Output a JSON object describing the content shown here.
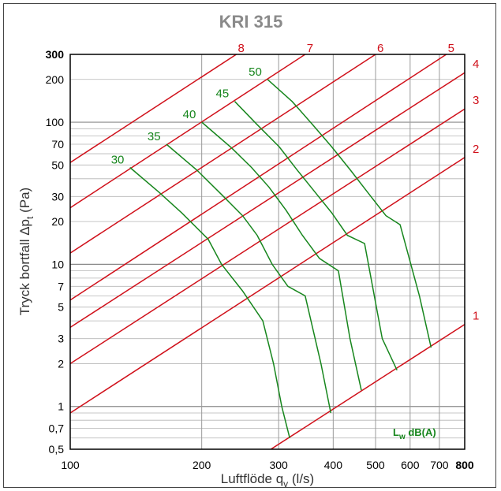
{
  "chart_data": {
    "type": "line",
    "title": "KRI 315",
    "xlabel": "Luftflöde q",
    "xlabel_sub": "v",
    "xlabel_unit": " (l/s)",
    "ylabel": "Tryck bortfall Δp",
    "ylabel_sub": "t",
    "ylabel_unit": " (Pa)",
    "x_scale": "log",
    "y_scale": "log",
    "xlim": [
      100,
      800
    ],
    "ylim": [
      0.5,
      300
    ],
    "grid": true,
    "x_ticks": [
      {
        "value": 100,
        "label": "100",
        "bold": false
      },
      {
        "value": 200,
        "label": "200",
        "bold": false
      },
      {
        "value": 300,
        "label": "300",
        "bold": false
      },
      {
        "value": 400,
        "label": "400",
        "bold": false
      },
      {
        "value": 500,
        "label": "500",
        "bold": false
      },
      {
        "value": 600,
        "label": "600",
        "bold": false
      },
      {
        "value": 700,
        "label": "700",
        "bold": false
      },
      {
        "value": 800,
        "label": "800",
        "bold": true
      }
    ],
    "y_ticks": [
      {
        "value": 0.5,
        "label": "0,5",
        "bold": false
      },
      {
        "value": 0.7,
        "label": "0,7",
        "bold": false
      },
      {
        "value": 1,
        "label": "1",
        "bold": false
      },
      {
        "value": 2,
        "label": "2",
        "bold": false
      },
      {
        "value": 3,
        "label": "3",
        "bold": false
      },
      {
        "value": 5,
        "label": "5",
        "bold": false
      },
      {
        "value": 7,
        "label": "7",
        "bold": false
      },
      {
        "value": 10,
        "label": "10",
        "bold": false
      },
      {
        "value": 20,
        "label": "20",
        "bold": false
      },
      {
        "value": 30,
        "label": "30",
        "bold": false
      },
      {
        "value": 50,
        "label": "50",
        "bold": false
      },
      {
        "value": 70,
        "label": "70",
        "bold": false
      },
      {
        "value": 100,
        "label": "100",
        "bold": false
      },
      {
        "value": 200,
        "label": "200",
        "bold": false
      },
      {
        "value": 300,
        "label": "300",
        "bold": true
      }
    ],
    "legend_label": "L",
    "legend_label_sub": "w",
    "legend_label_unit": " dB(A)",
    "legend_placement": "bottom-right",
    "colors": {
      "position_lines": "#d0101a",
      "sound_lines": "#17861d",
      "grid": "#9a9a9a"
    },
    "position_lines": [
      {
        "name": "1",
        "points": [
          [
            288,
            0.5
          ],
          [
            800,
            3.78
          ]
        ]
      },
      {
        "name": "2",
        "points": [
          [
            100,
            0.9
          ],
          [
            800,
            56.5
          ]
        ]
      },
      {
        "name": "3",
        "points": [
          [
            100,
            2.0
          ],
          [
            800,
            124
          ]
        ]
      },
      {
        "name": "4",
        "points": [
          [
            100,
            3.6
          ],
          [
            800,
            223
          ]
        ]
      },
      {
        "name": "5",
        "points": [
          [
            100,
            5.6
          ],
          [
            726,
            300
          ]
        ]
      },
      {
        "name": "6",
        "points": [
          [
            100,
            12.0
          ],
          [
            500,
            300
          ]
        ]
      },
      {
        "name": "7",
        "points": [
          [
            100,
            25.0
          ],
          [
            345,
            300
          ]
        ]
      },
      {
        "name": "8",
        "points": [
          [
            100,
            52.0
          ],
          [
            240,
            300
          ]
        ]
      }
    ],
    "sound_lines": [
      {
        "name": "30",
        "points": [
          [
            137,
            48
          ],
          [
            160,
            32
          ],
          [
            180,
            23
          ],
          [
            207,
            15
          ],
          [
            222,
            10
          ],
          [
            248,
            6.5
          ],
          [
            276,
            4
          ],
          [
            292,
            2
          ],
          [
            305,
            1
          ],
          [
            318,
            0.6
          ]
        ]
      },
      {
        "name": "35",
        "points": [
          [
            166,
            70
          ],
          [
            195,
            46
          ],
          [
            222,
            31
          ],
          [
            248,
            22
          ],
          [
            268,
            16
          ],
          [
            290,
            10
          ],
          [
            315,
            7
          ],
          [
            345,
            6
          ],
          [
            375,
            2
          ],
          [
            395,
            0.9
          ]
        ]
      },
      {
        "name": "40",
        "points": [
          [
            200,
            100
          ],
          [
            234,
            66
          ],
          [
            260,
            48
          ],
          [
            285,
            35
          ],
          [
            312,
            24
          ],
          [
            340,
            16
          ],
          [
            372,
            11
          ],
          [
            411,
            9
          ],
          [
            437,
            3
          ],
          [
            464,
            1.3
          ]
        ]
      },
      {
        "name": "45",
        "points": [
          [
            238,
            140
          ],
          [
            268,
            96
          ],
          [
            301,
            67
          ],
          [
            331,
            46
          ],
          [
            364,
            32
          ],
          [
            397,
            23
          ],
          [
            431,
            16
          ],
          [
            472,
            14
          ],
          [
            518,
            3
          ],
          [
            560,
            1.8
          ]
        ]
      },
      {
        "name": "50",
        "points": [
          [
            283,
            200
          ],
          [
            322,
            140
          ],
          [
            359,
            96
          ],
          [
            397,
            67
          ],
          [
            438,
            46
          ],
          [
            480,
            32
          ],
          [
            528,
            22
          ],
          [
            569,
            19
          ],
          [
            630,
            6
          ],
          [
            670,
            2.6
          ]
        ]
      }
    ]
  }
}
